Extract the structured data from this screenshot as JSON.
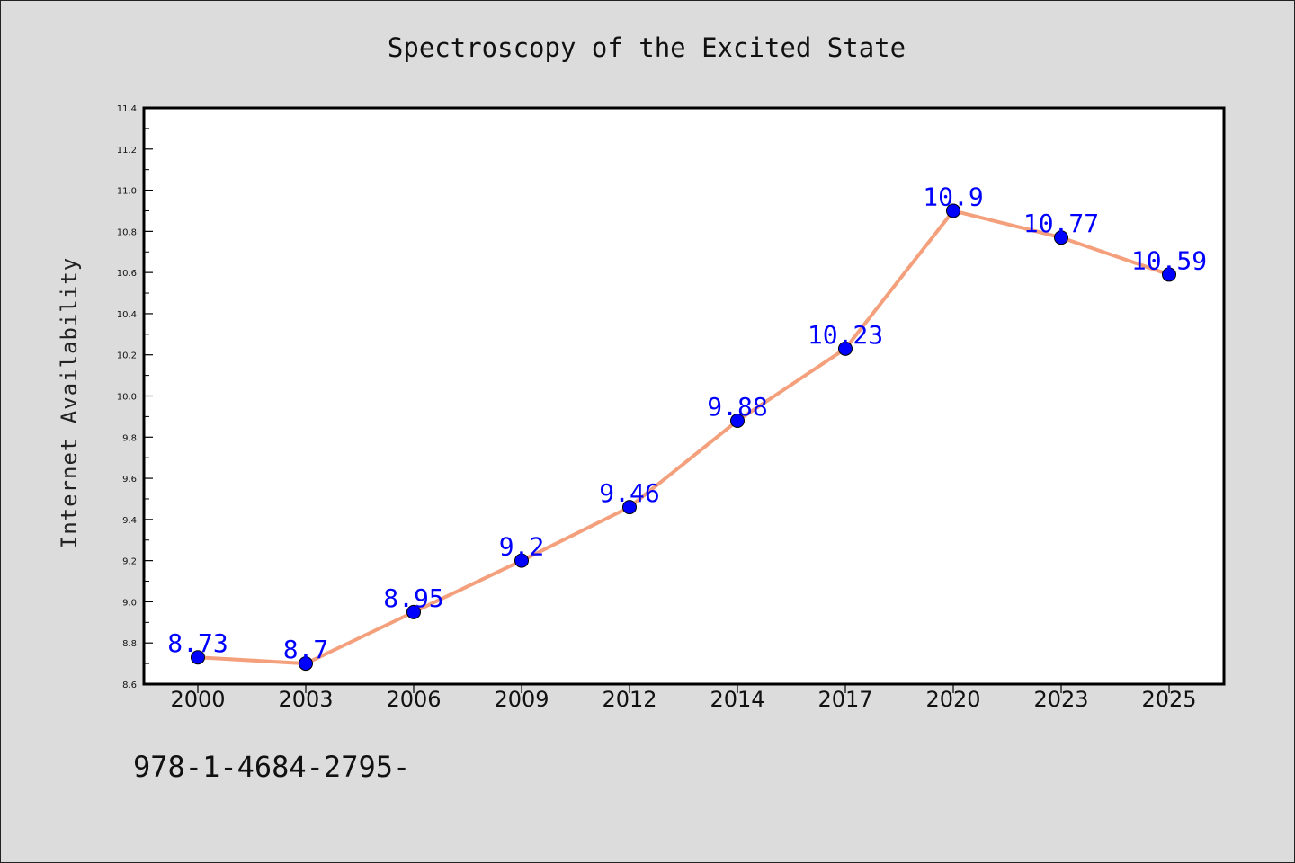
{
  "chart_data": {
    "type": "line",
    "title": "Spectroscopy of the Excited State",
    "xlabel": "",
    "ylabel": "Internet Availability",
    "categories": [
      "2000",
      "2003",
      "2006",
      "2009",
      "2012",
      "2014",
      "2017",
      "2020",
      "2023",
      "2025"
    ],
    "series": [
      {
        "values": [
          8.73,
          8.7,
          8.95,
          9.2,
          9.46,
          9.88,
          10.23,
          10.9,
          10.77,
          10.59
        ],
        "data_labels": [
          "8.73",
          "8.7",
          "8.95",
          "9.2",
          "9.46",
          "9.88",
          "10.23",
          "10.9",
          "10.77",
          "10.59"
        ]
      }
    ],
    "ylim": [
      8.6,
      11.4
    ],
    "y_major_ticks": [
      "8.6",
      "8.8",
      "9.0",
      "9.2",
      "9.4",
      "9.6",
      "9.8",
      "10.0",
      "10.2",
      "10.4",
      "10.6",
      "10.8",
      "11.0",
      "11.2",
      "11.4"
    ],
    "grid": false,
    "legend": "none",
    "colors": {
      "line": "#f4a07c",
      "marker": "#0000ff",
      "data_label": "#0000ff",
      "page_background": "#dcdcdc",
      "plot_background": "#ffffff"
    }
  },
  "footer_text": "978-1-4684-2795-"
}
